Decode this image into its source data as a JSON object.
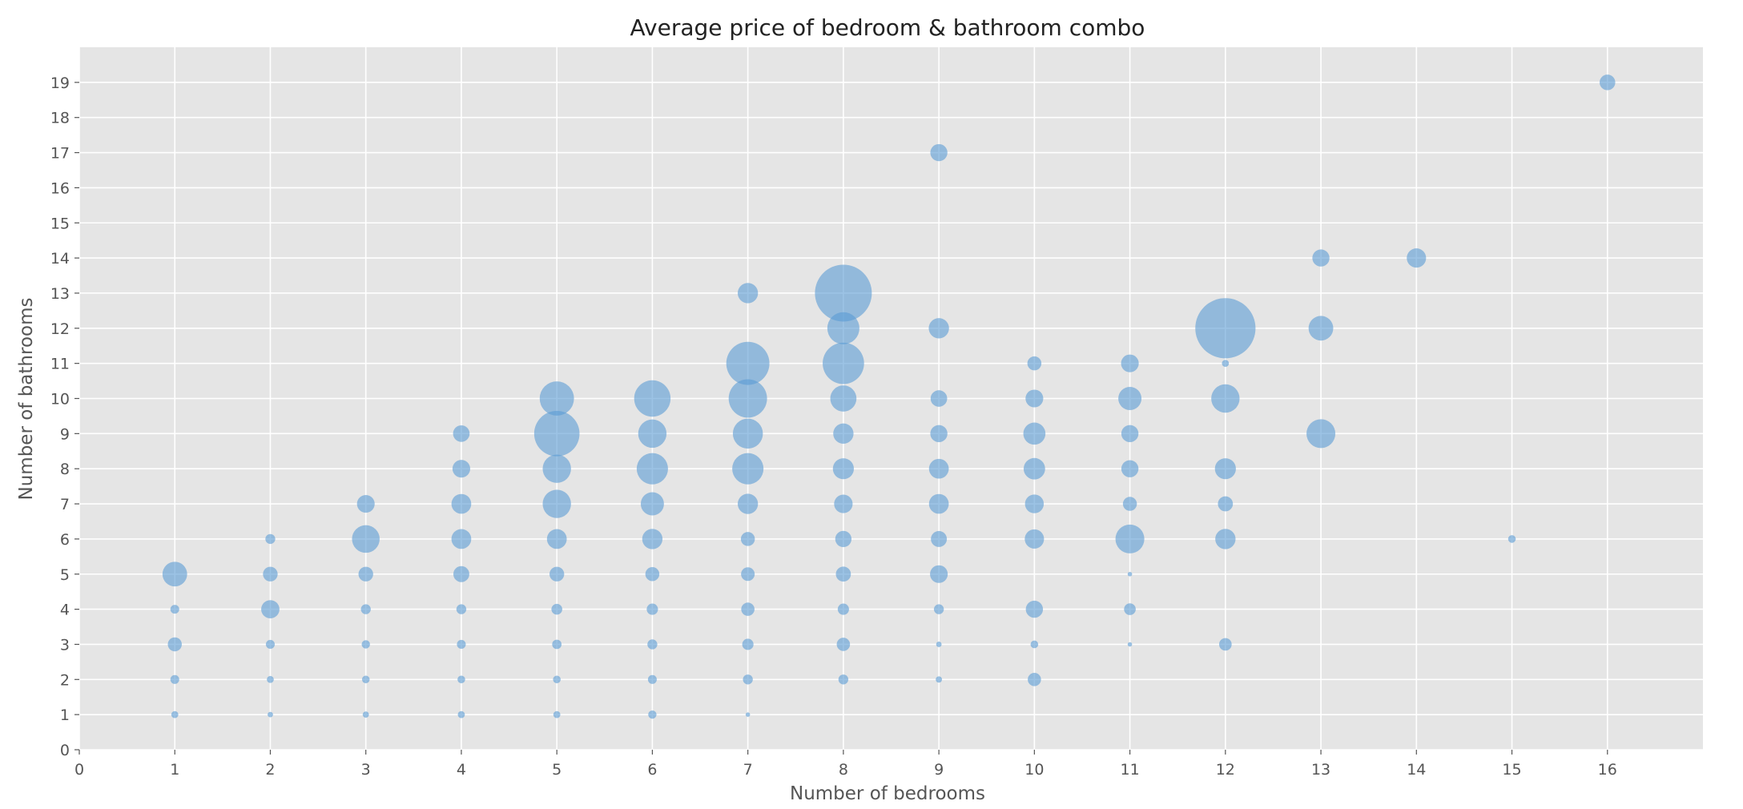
{
  "chart_data": {
    "type": "scatter",
    "title": "Average price of bedroom & bathroom combo",
    "xlabel": "Number of bedrooms",
    "ylabel": "Number of bathrooms",
    "xlim": [
      0,
      17
    ],
    "ylim": [
      0,
      20
    ],
    "xticks": [
      0,
      1,
      2,
      3,
      4,
      5,
      6,
      7,
      8,
      9,
      10,
      11,
      12,
      13,
      14,
      15,
      16
    ],
    "yticks": [
      0,
      1,
      2,
      3,
      4,
      5,
      6,
      7,
      8,
      9,
      10,
      11,
      12,
      13,
      14,
      15,
      16,
      17,
      18,
      19
    ],
    "grid": true,
    "marker_color": "#5a9bd4",
    "points": [
      {
        "x": 1,
        "y": 1,
        "size": 0.05
      },
      {
        "x": 1,
        "y": 2,
        "size": 0.08
      },
      {
        "x": 1,
        "y": 3,
        "size": 0.2
      },
      {
        "x": 1,
        "y": 4,
        "size": 0.08
      },
      {
        "x": 1,
        "y": 5,
        "size": 0.62
      },
      {
        "x": 2,
        "y": 1,
        "size": 0.03
      },
      {
        "x": 2,
        "y": 2,
        "size": 0.05
      },
      {
        "x": 2,
        "y": 3,
        "size": 0.08
      },
      {
        "x": 2,
        "y": 4,
        "size": 0.34
      },
      {
        "x": 2,
        "y": 5,
        "size": 0.22
      },
      {
        "x": 2,
        "y": 6,
        "size": 0.1
      },
      {
        "x": 3,
        "y": 1,
        "size": 0.04
      },
      {
        "x": 3,
        "y": 2,
        "size": 0.06
      },
      {
        "x": 3,
        "y": 3,
        "size": 0.07
      },
      {
        "x": 3,
        "y": 4,
        "size": 0.1
      },
      {
        "x": 3,
        "y": 5,
        "size": 0.22
      },
      {
        "x": 3,
        "y": 6,
        "size": 0.78
      },
      {
        "x": 3,
        "y": 7,
        "size": 0.32
      },
      {
        "x": 4,
        "y": 1,
        "size": 0.05
      },
      {
        "x": 4,
        "y": 2,
        "size": 0.06
      },
      {
        "x": 4,
        "y": 3,
        "size": 0.08
      },
      {
        "x": 4,
        "y": 4,
        "size": 0.1
      },
      {
        "x": 4,
        "y": 5,
        "size": 0.26
      },
      {
        "x": 4,
        "y": 6,
        "size": 0.4
      },
      {
        "x": 4,
        "y": 7,
        "size": 0.4
      },
      {
        "x": 4,
        "y": 8,
        "size": 0.32
      },
      {
        "x": 4,
        "y": 9,
        "size": 0.28
      },
      {
        "x": 5,
        "y": 1,
        "size": 0.05
      },
      {
        "x": 5,
        "y": 2,
        "size": 0.06
      },
      {
        "x": 5,
        "y": 3,
        "size": 0.09
      },
      {
        "x": 5,
        "y": 4,
        "size": 0.12
      },
      {
        "x": 5,
        "y": 5,
        "size": 0.22
      },
      {
        "x": 5,
        "y": 6,
        "size": 0.4
      },
      {
        "x": 5,
        "y": 7,
        "size": 0.82
      },
      {
        "x": 5,
        "y": 8,
        "size": 0.82
      },
      {
        "x": 5,
        "y": 9,
        "size": 2.1
      },
      {
        "x": 5,
        "y": 10,
        "size": 1.2
      },
      {
        "x": 6,
        "y": 1,
        "size": 0.07
      },
      {
        "x": 6,
        "y": 2,
        "size": 0.08
      },
      {
        "x": 6,
        "y": 3,
        "size": 0.1
      },
      {
        "x": 6,
        "y": 4,
        "size": 0.13
      },
      {
        "x": 6,
        "y": 5,
        "size": 0.2
      },
      {
        "x": 6,
        "y": 6,
        "size": 0.42
      },
      {
        "x": 6,
        "y": 7,
        "size": 0.55
      },
      {
        "x": 6,
        "y": 8,
        "size": 1.0
      },
      {
        "x": 6,
        "y": 9,
        "size": 0.82
      },
      {
        "x": 6,
        "y": 10,
        "size": 1.35
      },
      {
        "x": 7,
        "y": 1,
        "size": 0.02
      },
      {
        "x": 7,
        "y": 2,
        "size": 0.1
      },
      {
        "x": 7,
        "y": 3,
        "size": 0.13
      },
      {
        "x": 7,
        "y": 4,
        "size": 0.18
      },
      {
        "x": 7,
        "y": 5,
        "size": 0.19
      },
      {
        "x": 7,
        "y": 6,
        "size": 0.2
      },
      {
        "x": 7,
        "y": 7,
        "size": 0.42
      },
      {
        "x": 7,
        "y": 8,
        "size": 1.0
      },
      {
        "x": 7,
        "y": 9,
        "size": 0.92
      },
      {
        "x": 7,
        "y": 10,
        "size": 1.5
      },
      {
        "x": 7,
        "y": 11,
        "size": 1.9
      },
      {
        "x": 7,
        "y": 13,
        "size": 0.42
      },
      {
        "x": 8,
        "y": 2,
        "size": 0.1
      },
      {
        "x": 8,
        "y": 3,
        "size": 0.18
      },
      {
        "x": 8,
        "y": 4,
        "size": 0.13
      },
      {
        "x": 8,
        "y": 5,
        "size": 0.23
      },
      {
        "x": 8,
        "y": 6,
        "size": 0.27
      },
      {
        "x": 8,
        "y": 7,
        "size": 0.35
      },
      {
        "x": 8,
        "y": 8,
        "size": 0.45
      },
      {
        "x": 8,
        "y": 9,
        "size": 0.42
      },
      {
        "x": 8,
        "y": 10,
        "size": 0.7
      },
      {
        "x": 8,
        "y": 11,
        "size": 1.75
      },
      {
        "x": 8,
        "y": 12,
        "size": 1.05
      },
      {
        "x": 8,
        "y": 13,
        "size": 3.3
      },
      {
        "x": 9,
        "y": 2,
        "size": 0.04
      },
      {
        "x": 9,
        "y": 3,
        "size": 0.03
      },
      {
        "x": 9,
        "y": 4,
        "size": 0.1
      },
      {
        "x": 9,
        "y": 5,
        "size": 0.32
      },
      {
        "x": 9,
        "y": 6,
        "size": 0.26
      },
      {
        "x": 9,
        "y": 7,
        "size": 0.4
      },
      {
        "x": 9,
        "y": 8,
        "size": 0.4
      },
      {
        "x": 9,
        "y": 9,
        "size": 0.3
      },
      {
        "x": 9,
        "y": 10,
        "size": 0.28
      },
      {
        "x": 9,
        "y": 12,
        "size": 0.42
      },
      {
        "x": 9,
        "y": 17,
        "size": 0.3
      },
      {
        "x": 10,
        "y": 2,
        "size": 0.18
      },
      {
        "x": 10,
        "y": 3,
        "size": 0.06
      },
      {
        "x": 10,
        "y": 4,
        "size": 0.3
      },
      {
        "x": 10,
        "y": 6,
        "size": 0.38
      },
      {
        "x": 10,
        "y": 7,
        "size": 0.36
      },
      {
        "x": 10,
        "y": 8,
        "size": 0.47
      },
      {
        "x": 10,
        "y": 9,
        "size": 0.5
      },
      {
        "x": 10,
        "y": 10,
        "size": 0.32
      },
      {
        "x": 10,
        "y": 11,
        "size": 0.2
      },
      {
        "x": 11,
        "y": 3,
        "size": 0.02
      },
      {
        "x": 11,
        "y": 4,
        "size": 0.14
      },
      {
        "x": 11,
        "y": 5,
        "size": 0.02
      },
      {
        "x": 11,
        "y": 6,
        "size": 0.85
      },
      {
        "x": 11,
        "y": 7,
        "size": 0.2
      },
      {
        "x": 11,
        "y": 8,
        "size": 0.3
      },
      {
        "x": 11,
        "y": 9,
        "size": 0.3
      },
      {
        "x": 11,
        "y": 10,
        "size": 0.55
      },
      {
        "x": 11,
        "y": 11,
        "size": 0.32
      },
      {
        "x": 12,
        "y": 3,
        "size": 0.16
      },
      {
        "x": 12,
        "y": 6,
        "size": 0.42
      },
      {
        "x": 12,
        "y": 7,
        "size": 0.23
      },
      {
        "x": 12,
        "y": 8,
        "size": 0.45
      },
      {
        "x": 12,
        "y": 10,
        "size": 0.82
      },
      {
        "x": 12,
        "y": 11,
        "size": 0.05
      },
      {
        "x": 12,
        "y": 12,
        "size": 3.7
      },
      {
        "x": 13,
        "y": 9,
        "size": 0.85
      },
      {
        "x": 13,
        "y": 12,
        "size": 0.62
      },
      {
        "x": 13,
        "y": 14,
        "size": 0.3
      },
      {
        "x": 14,
        "y": 14,
        "size": 0.38
      },
      {
        "x": 15,
        "y": 6,
        "size": 0.06
      },
      {
        "x": 16,
        "y": 19,
        "size": 0.25
      }
    ]
  }
}
